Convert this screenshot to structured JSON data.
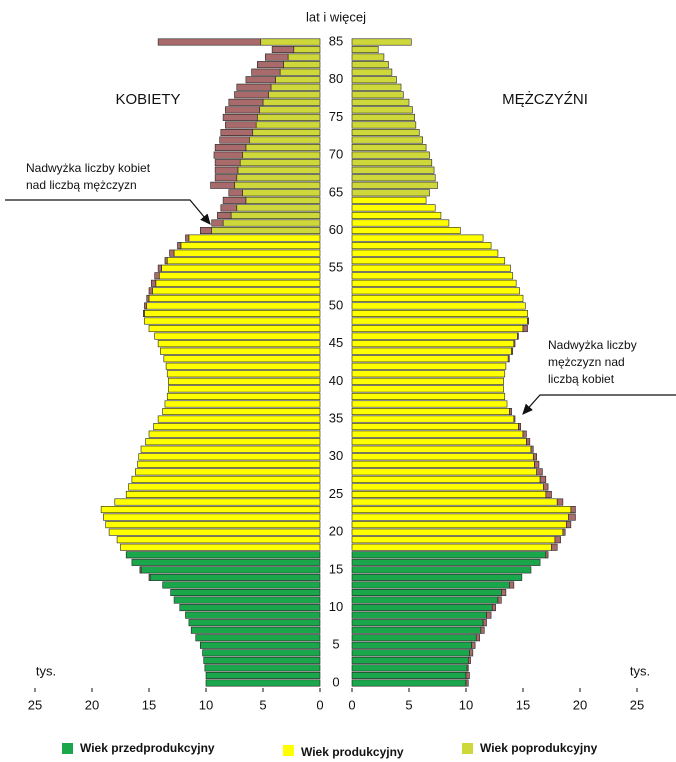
{
  "chart_data": {
    "type": "pyramid",
    "top_label": "lat i więcej",
    "unit_label": "tys.",
    "categories": [
      0,
      null,
      null,
      null,
      null,
      5,
      null,
      null,
      null,
      null,
      10,
      null,
      null,
      null,
      null,
      15,
      null,
      null,
      null,
      null,
      20,
      null,
      null,
      null,
      null,
      25,
      null,
      null,
      null,
      null,
      30,
      null,
      null,
      null,
      null,
      35,
      null,
      null,
      null,
      null,
      40,
      null,
      null,
      null,
      null,
      45,
      null,
      null,
      null,
      null,
      50,
      null,
      null,
      null,
      null,
      55,
      null,
      null,
      null,
      null,
      60,
      null,
      null,
      null,
      null,
      65,
      null,
      null,
      null,
      null,
      70,
      null,
      null,
      null,
      null,
      75,
      null,
      null,
      null,
      null,
      80,
      null,
      null,
      null,
      null,
      85
    ],
    "xlim": [
      0,
      25
    ],
    "xticks": [
      0,
      5,
      10,
      15,
      20,
      25
    ],
    "excess_color": "#a86a6a",
    "groups": [
      {
        "name": "Wiek przedprodukcyjny",
        "color": "#1aa64a"
      },
      {
        "name": "Wiek produkcyjny",
        "color": "#ffff00"
      },
      {
        "name": "Wiek poprodukcyjny",
        "color": "#cfd83a"
      }
    ],
    "series": [
      {
        "name": "KOBIETY",
        "side": "left",
        "values": [
          10.0,
          10.0,
          10.1,
          10.2,
          10.3,
          10.5,
          10.9,
          11.3,
          11.5,
          11.8,
          12.3,
          12.8,
          13.1,
          13.8,
          15.0,
          15.8,
          16.5,
          17.0,
          17.5,
          17.8,
          18.5,
          18.8,
          19.0,
          19.2,
          18.0,
          17.0,
          16.8,
          16.5,
          16.2,
          16.0,
          15.9,
          15.7,
          15.3,
          15.0,
          14.6,
          14.2,
          13.8,
          13.6,
          13.4,
          13.3,
          13.3,
          13.4,
          13.5,
          13.7,
          14.0,
          14.2,
          14.5,
          15.0,
          15.4,
          15.5,
          15.4,
          15.2,
          15.0,
          14.8,
          14.5,
          14.2,
          13.6,
          13.2,
          12.5,
          11.8,
          10.5,
          9.5,
          9.0,
          8.7,
          8.5,
          8.0,
          9.6,
          9.2,
          9.2,
          9.2,
          9.3,
          9.2,
          8.8,
          8.7,
          8.3,
          8.5,
          8.3,
          8.0,
          7.5,
          7.3,
          6.5,
          6.0,
          5.5,
          4.8,
          4.2,
          14.2
        ],
        "group": [
          0,
          0,
          0,
          0,
          0,
          0,
          0,
          0,
          0,
          0,
          0,
          0,
          0,
          0,
          0,
          0,
          0,
          0,
          1,
          1,
          1,
          1,
          1,
          1,
          1,
          1,
          1,
          1,
          1,
          1,
          1,
          1,
          1,
          1,
          1,
          1,
          1,
          1,
          1,
          1,
          1,
          1,
          1,
          1,
          1,
          1,
          1,
          1,
          1,
          1,
          1,
          1,
          1,
          1,
          1,
          1,
          1,
          1,
          1,
          1,
          2,
          2,
          2,
          2,
          2,
          2,
          2,
          2,
          2,
          2,
          2,
          2,
          2,
          2,
          2,
          2,
          2,
          2,
          2,
          2,
          2,
          2,
          2,
          2,
          2,
          2
        ]
      },
      {
        "name": "MĘŻCZYŹNI",
        "side": "right",
        "values": [
          10.2,
          10.3,
          10.2,
          10.4,
          10.6,
          10.8,
          11.2,
          11.6,
          11.8,
          12.2,
          12.6,
          13.1,
          13.5,
          14.2,
          14.9,
          15.7,
          16.5,
          17.2,
          18.0,
          18.3,
          18.7,
          19.2,
          19.6,
          19.6,
          18.5,
          17.5,
          17.2,
          17.0,
          16.7,
          16.4,
          16.2,
          15.9,
          15.6,
          15.3,
          14.8,
          14.3,
          14.0,
          13.6,
          13.4,
          13.3,
          13.3,
          13.4,
          13.5,
          13.8,
          14.1,
          14.3,
          14.6,
          15.4,
          15.5,
          15.4,
          15.2,
          15.0,
          14.7,
          14.4,
          14.1,
          13.9,
          13.4,
          12.8,
          12.2,
          11.5,
          9.5,
          8.5,
          7.8,
          7.3,
          6.5,
          6.8,
          7.5,
          7.3,
          7.2,
          7.0,
          6.8,
          6.5,
          6.2,
          5.9,
          5.6,
          5.5,
          5.3,
          5.0,
          4.5,
          4.3,
          3.9,
          3.5,
          3.2,
          2.8,
          2.3,
          5.2
        ],
        "group": [
          0,
          0,
          0,
          0,
          0,
          0,
          0,
          0,
          0,
          0,
          0,
          0,
          0,
          0,
          0,
          0,
          0,
          0,
          1,
          1,
          1,
          1,
          1,
          1,
          1,
          1,
          1,
          1,
          1,
          1,
          1,
          1,
          1,
          1,
          1,
          1,
          1,
          1,
          1,
          1,
          1,
          1,
          1,
          1,
          1,
          1,
          1,
          1,
          1,
          1,
          1,
          1,
          1,
          1,
          1,
          1,
          1,
          1,
          1,
          1,
          1,
          1,
          1,
          1,
          1,
          2,
          2,
          2,
          2,
          2,
          2,
          2,
          2,
          2,
          2,
          2,
          2,
          2,
          2,
          2,
          2,
          2,
          2,
          2,
          2,
          2
        ]
      }
    ],
    "annotations": [
      {
        "lines": [
          "Nadwyżka liczby kobiet",
          "nad liczbą mężczyzn"
        ]
      },
      {
        "lines": [
          "Nadwyżka  liczby",
          "mężczyzn nad",
          "liczbą kobiet"
        ]
      }
    ]
  }
}
